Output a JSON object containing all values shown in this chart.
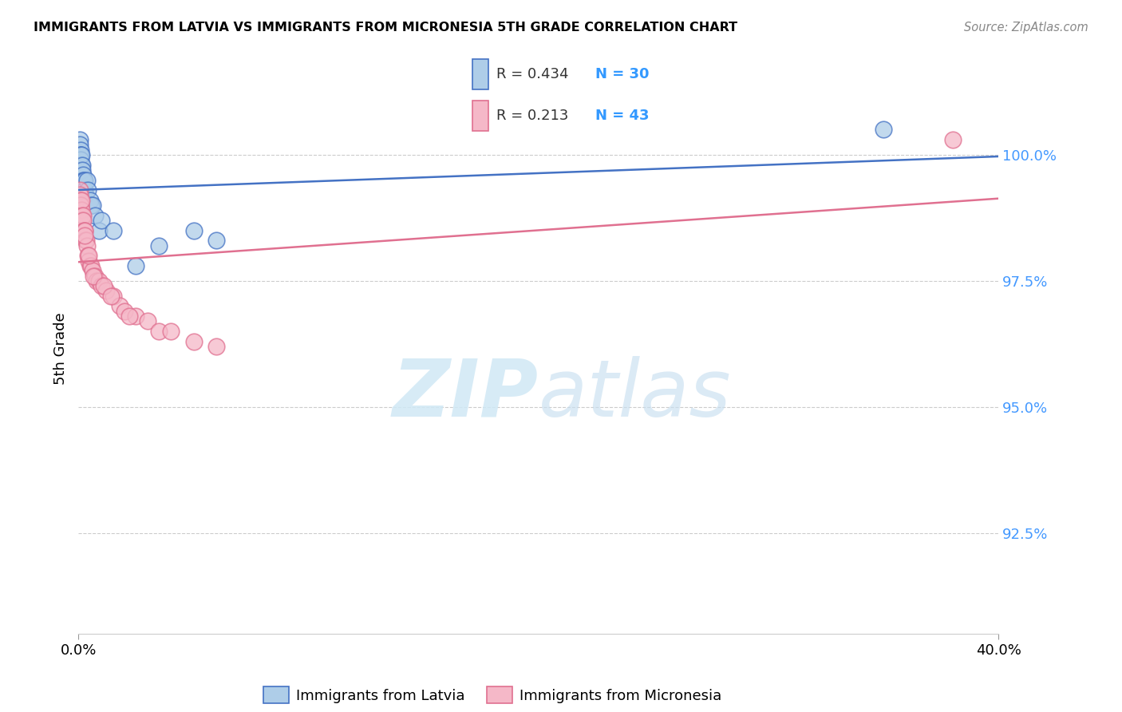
{
  "title": "IMMIGRANTS FROM LATVIA VS IMMIGRANTS FROM MICRONESIA 5TH GRADE CORRELATION CHART",
  "source": "Source: ZipAtlas.com",
  "ylabel": "5th Grade",
  "ytick_values": [
    92.5,
    95.0,
    97.5,
    100.0
  ],
  "xlim": [
    0.0,
    40.0
  ],
  "ylim": [
    90.5,
    101.8
  ],
  "legend_latvia": "Immigrants from Latvia",
  "legend_micronesia": "Immigrants from Micronesia",
  "R_latvia": 0.434,
  "N_latvia": 30,
  "R_micronesia": 0.213,
  "N_micronesia": 43,
  "color_latvia": "#aecde8",
  "color_micronesia": "#f5b8c8",
  "color_latvia_line": "#4472c4",
  "color_micronesia_line": "#e07090",
  "latvia_x": [
    0.05,
    0.07,
    0.08,
    0.09,
    0.1,
    0.1,
    0.12,
    0.13,
    0.15,
    0.15,
    0.18,
    0.2,
    0.22,
    0.25,
    0.28,
    0.3,
    0.35,
    0.4,
    0.5,
    0.55,
    0.6,
    0.7,
    0.9,
    1.0,
    1.5,
    2.5,
    3.5,
    5.0,
    6.0,
    35.0
  ],
  "latvia_y": [
    100.3,
    100.2,
    100.1,
    100.0,
    100.0,
    99.9,
    99.8,
    100.0,
    99.8,
    99.7,
    99.6,
    99.5,
    99.5,
    99.5,
    99.3,
    99.2,
    99.5,
    99.3,
    99.1,
    99.0,
    99.0,
    98.8,
    98.5,
    98.7,
    98.5,
    97.8,
    98.2,
    98.5,
    98.3,
    100.5
  ],
  "micronesia_x": [
    0.05,
    0.07,
    0.08,
    0.09,
    0.1,
    0.12,
    0.13,
    0.15,
    0.16,
    0.18,
    0.2,
    0.22,
    0.25,
    0.27,
    0.3,
    0.32,
    0.35,
    0.4,
    0.45,
    0.5,
    0.55,
    0.6,
    0.7,
    0.8,
    0.9,
    1.0,
    1.2,
    1.5,
    1.8,
    2.0,
    2.5,
    3.0,
    3.5,
    4.0,
    5.0,
    6.0,
    0.28,
    0.42,
    0.65,
    1.1,
    1.4,
    2.2,
    38.0
  ],
  "micronesia_y": [
    99.3,
    99.2,
    99.1,
    99.0,
    99.0,
    98.9,
    99.1,
    98.8,
    98.7,
    98.8,
    98.7,
    98.5,
    98.5,
    98.5,
    98.3,
    98.3,
    98.2,
    98.0,
    97.9,
    97.8,
    97.8,
    97.7,
    97.6,
    97.5,
    97.5,
    97.4,
    97.3,
    97.2,
    97.0,
    96.9,
    96.8,
    96.7,
    96.5,
    96.5,
    96.3,
    96.2,
    98.4,
    98.0,
    97.6,
    97.4,
    97.2,
    96.8,
    100.3
  ],
  "grid_color": "#cccccc",
  "tick_color_y": "#4499ff",
  "watermark_color": "#d0e8f5"
}
